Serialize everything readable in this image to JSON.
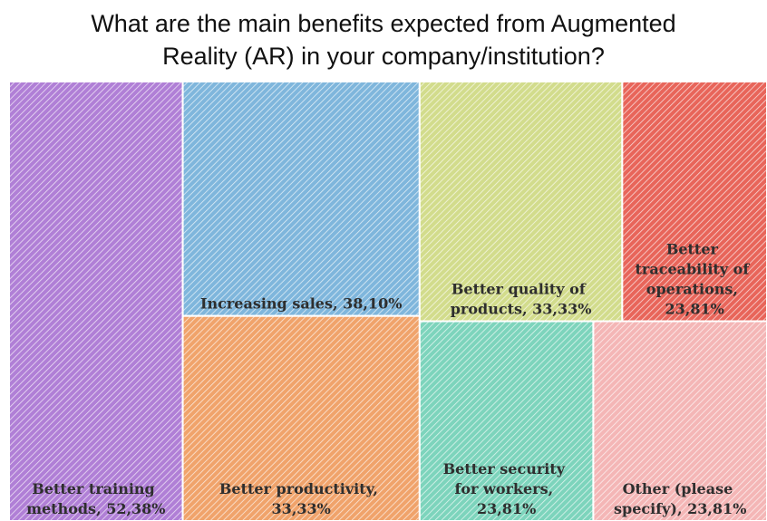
{
  "chart_data": {
    "type": "treemap",
    "title": "What are the main benefits expected from Augmented Reality (AR) in your company/institution?",
    "labels": [
      "Better training methods, 52,38%",
      "Increasing sales, 38,10%",
      "Better productivity, 33,33%",
      "Better quality of products, 33,33%",
      "Better traceability of operations, 23,81%",
      "Better security for workers, 23,81%",
      "Other (please specify), 23,81%"
    ],
    "values": [
      52.38,
      38.1,
      33.33,
      33.33,
      23.81,
      23.81,
      23.81
    ],
    "colors": [
      "#b07fd6",
      "#7fb6dc",
      "#f0a36b",
      "#d2dc8c",
      "#e8655a",
      "#7dd4bc",
      "#f4b6b6"
    ]
  }
}
